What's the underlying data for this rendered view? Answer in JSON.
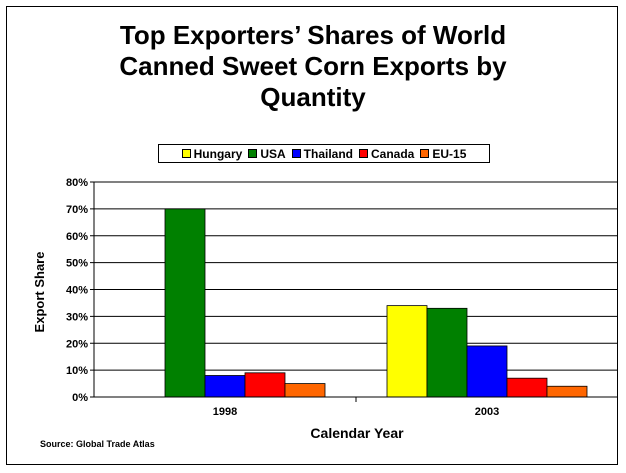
{
  "chart_data": {
    "type": "bar",
    "title_lines": [
      "Top Exporters’ Shares of World",
      "Canned Sweet Corn Exports by",
      "Quantity"
    ],
    "xlabel": "Calendar Year",
    "ylabel": "Export Share",
    "categories": [
      "1998",
      "2003"
    ],
    "series": [
      {
        "name": "Hungary",
        "color": "#ffff00",
        "values": [
          0,
          34
        ]
      },
      {
        "name": "USA",
        "color": "#008000",
        "values": [
          70,
          33
        ]
      },
      {
        "name": "Thailand",
        "color": "#0000ff",
        "values": [
          8,
          19
        ]
      },
      {
        "name": "Canada",
        "color": "#ff0000",
        "values": [
          9,
          7
        ]
      },
      {
        "name": "EU-15",
        "color": "#ff6600",
        "values": [
          5,
          4
        ]
      }
    ],
    "y_ticks": [
      "0%",
      "10%",
      "20%",
      "30%",
      "40%",
      "50%",
      "60%",
      "70%",
      "80%"
    ],
    "ylim": [
      0,
      80
    ],
    "grid": true,
    "legend_position": "top"
  },
  "source": "Source:  Global Trade Atlas"
}
